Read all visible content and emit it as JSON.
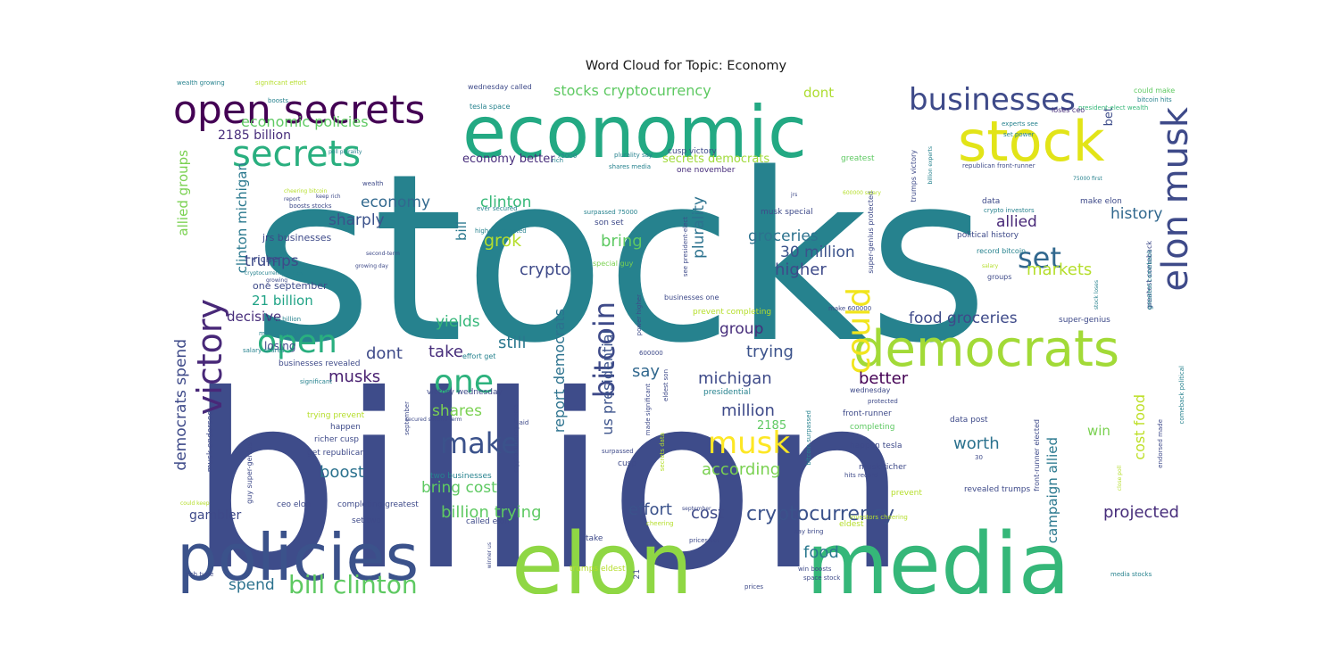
{
  "chart_data": {
    "type": "wordcloud",
    "title": "Word Cloud for Topic: Economy",
    "background": "#ffffff",
    "colormap": "viridis",
    "words": [
      {
        "text": "stocks",
        "weight": 1.0,
        "color": "#26828e"
      },
      {
        "text": "billion",
        "weight": 0.98,
        "color": "#3e4c8a"
      },
      {
        "text": "economic",
        "weight": 0.55,
        "color": "#23a983"
      },
      {
        "text": "elon",
        "weight": 0.55,
        "color": "#8fd744"
      },
      {
        "text": "media",
        "weight": 0.5,
        "color": "#35b779"
      },
      {
        "text": "policies",
        "weight": 0.42,
        "color": "#3b528b"
      },
      {
        "text": "democrats",
        "weight": 0.38,
        "color": "#a2da37"
      },
      {
        "text": "stock",
        "weight": 0.35,
        "color": "#e2e418"
      },
      {
        "text": "open secrets",
        "weight": 0.3,
        "color": "#440154"
      },
      {
        "text": "businesses",
        "weight": 0.24,
        "color": "#3e4a89"
      },
      {
        "text": "elon musk",
        "weight": 0.28,
        "color": "#3e4a89"
      },
      {
        "text": "secrets",
        "weight": 0.24,
        "color": "#29af7f"
      },
      {
        "text": "victory",
        "weight": 0.24,
        "color": "#482878"
      },
      {
        "text": "could",
        "weight": 0.22,
        "color": "#f1e51d"
      },
      {
        "text": "open",
        "weight": 0.22,
        "color": "#29af7f"
      },
      {
        "text": "one",
        "weight": 0.22,
        "color": "#2db27d"
      },
      {
        "text": "bitcoin",
        "weight": 0.2,
        "color": "#3e4a89"
      },
      {
        "text": "make",
        "weight": 0.2,
        "color": "#3b528b"
      },
      {
        "text": "musk",
        "weight": 0.2,
        "color": "#fde725"
      },
      {
        "text": "set",
        "weight": 0.18,
        "color": "#31688e"
      },
      {
        "text": "bill clinton",
        "weight": 0.15,
        "color": "#5ec962"
      },
      {
        "text": "cryptocurrency",
        "weight": 0.13,
        "color": "#3b528b"
      },
      {
        "text": "stocks cryptocurrency",
        "weight": 0.1,
        "color": "#5ec962"
      },
      {
        "text": "economic policies",
        "weight": 0.1,
        "color": "#5ec962"
      },
      {
        "text": "2185 billion",
        "weight": 0.08,
        "color": "#472d7b"
      },
      {
        "text": "economy better",
        "weight": 0.07,
        "color": "#472d7b"
      },
      {
        "text": "secrets democrats",
        "weight": 0.07,
        "color": "#a0da39"
      },
      {
        "text": "dont",
        "weight": 0.09,
        "color": "#addc30"
      },
      {
        "text": "bet",
        "weight": 0.07,
        "color": "#3e4c8a"
      },
      {
        "text": "allied groups",
        "weight": 0.09,
        "color": "#7ad151"
      },
      {
        "text": "clinton michigan",
        "weight": 0.09,
        "color": "#2a788e"
      },
      {
        "text": "economy",
        "weight": 0.1,
        "color": "#31688e"
      },
      {
        "text": "clinton",
        "weight": 0.1,
        "color": "#37b878"
      },
      {
        "text": "groceries",
        "weight": 0.12,
        "color": "#2c728e"
      },
      {
        "text": "30 million",
        "weight": 0.1,
        "color": "#3b528b"
      },
      {
        "text": "sharply",
        "weight": 0.1,
        "color": "#3b528b"
      },
      {
        "text": "grok",
        "weight": 0.11,
        "color": "#b5de2b"
      },
      {
        "text": "bill",
        "weight": 0.09,
        "color": "#2a788e"
      },
      {
        "text": "bring",
        "weight": 0.11,
        "color": "#5ec962"
      },
      {
        "text": "plurality",
        "weight": 0.11,
        "color": "#2c728e"
      },
      {
        "text": "history",
        "weight": 0.1,
        "color": "#31688e"
      },
      {
        "text": "allied",
        "weight": 0.1,
        "color": "#482878"
      },
      {
        "text": "trumps",
        "weight": 0.1,
        "color": "#3e4a89"
      },
      {
        "text": "crypto",
        "weight": 0.11,
        "color": "#3e4a89"
      },
      {
        "text": "higher",
        "weight": 0.11,
        "color": "#3e4a89"
      },
      {
        "text": "markets",
        "weight": 0.11,
        "color": "#b5de2b"
      },
      {
        "text": "21 billion",
        "weight": 0.1,
        "color": "#20a386"
      },
      {
        "text": "decisive",
        "weight": 0.09,
        "color": "#472d7b"
      },
      {
        "text": "yields",
        "weight": 0.1,
        "color": "#35b779"
      },
      {
        "text": "food groceries",
        "weight": 0.1,
        "color": "#3e4a89"
      },
      {
        "text": "group",
        "weight": 0.1,
        "color": "#472d7b"
      },
      {
        "text": "trying",
        "weight": 0.11,
        "color": "#3b528b"
      },
      {
        "text": "dont",
        "weight": 0.1,
        "color": "#3e4a89"
      },
      {
        "text": "take",
        "weight": 0.11,
        "color": "#472d7b"
      },
      {
        "text": "still",
        "weight": 0.11,
        "color": "#2a788e"
      },
      {
        "text": "michigan",
        "weight": 0.11,
        "color": "#3e4a89"
      },
      {
        "text": "better",
        "weight": 0.11,
        "color": "#440154"
      },
      {
        "text": "say",
        "weight": 0.11,
        "color": "#31688e"
      },
      {
        "text": "democrats spend",
        "weight": 0.1,
        "color": "#3e4a89"
      },
      {
        "text": "report democrats",
        "weight": 0.09,
        "color": "#2c728e"
      },
      {
        "text": "us presidential",
        "weight": 0.09,
        "color": "#3b528b"
      },
      {
        "text": "million",
        "weight": 0.11,
        "color": "#3e4a89"
      },
      {
        "text": "2185",
        "weight": 0.09,
        "color": "#5ec962"
      },
      {
        "text": "cost food",
        "weight": 0.09,
        "color": "#bddf26"
      },
      {
        "text": "musks",
        "weight": 0.1,
        "color": "#481f70"
      },
      {
        "text": "shares",
        "weight": 0.1,
        "color": "#7ad151"
      },
      {
        "text": "bring cost",
        "weight": 0.11,
        "color": "#5ec962"
      },
      {
        "text": "worth",
        "weight": 0.11,
        "color": "#2c728e"
      },
      {
        "text": "win",
        "weight": 0.09,
        "color": "#7ad151"
      },
      {
        "text": "campaign allied",
        "weight": 0.09,
        "color": "#2a788e"
      },
      {
        "text": "boost",
        "weight": 0.11,
        "color": "#2c728e"
      },
      {
        "text": "according",
        "weight": 0.11,
        "color": "#7ad151"
      },
      {
        "text": "billion trying",
        "weight": 0.11,
        "color": "#5ec962"
      },
      {
        "text": "effort",
        "weight": 0.11,
        "color": "#3b528b"
      },
      {
        "text": "cost",
        "weight": 0.11,
        "color": "#3e4a89"
      },
      {
        "text": "projected",
        "weight": 0.11,
        "color": "#472d7b"
      },
      {
        "text": "gambler",
        "weight": 0.09,
        "color": "#3e4a89"
      },
      {
        "text": "food",
        "weight": 0.11,
        "color": "#2a788e"
      },
      {
        "text": "spend",
        "weight": 0.11,
        "color": "#2c728e"
      },
      {
        "text": "losing",
        "weight": 0.06,
        "color": "#3e4a89"
      },
      {
        "text": "jrs businesses",
        "weight": 0.06,
        "color": "#3e4a89"
      },
      {
        "text": "one september",
        "weight": 0.06,
        "color": "#3e4a89"
      },
      {
        "text": "richer",
        "weight": 0.06,
        "color": "#3e4a89"
      },
      {
        "text": "wealth growing",
        "weight": 0.04,
        "color": "#26828e"
      },
      {
        "text": "significant effort",
        "weight": 0.04,
        "color": "#b5de2b"
      },
      {
        "text": "boosts",
        "weight": 0.04,
        "color": "#26828e"
      },
      {
        "text": "wednesday called",
        "weight": 0.05,
        "color": "#3e4a89"
      },
      {
        "text": "tesla space",
        "weight": 0.05,
        "color": "#26828e"
      },
      {
        "text": "could make",
        "weight": 0.05,
        "color": "#5ec962"
      },
      {
        "text": "bitcoin hits",
        "weight": 0.04,
        "color": "#26828e"
      },
      {
        "text": "president-elect wealth",
        "weight": 0.04,
        "color": "#35b779"
      },
      {
        "text": "loses ceo",
        "weight": 0.05,
        "color": "#472d7b"
      },
      {
        "text": "experts see",
        "weight": 0.04,
        "color": "#26828e"
      },
      {
        "text": "set power",
        "weight": 0.04,
        "color": "#26828e"
      },
      {
        "text": "one november",
        "weight": 0.05,
        "color": "#472d7b"
      },
      {
        "text": "cusp victory",
        "weight": 0.06,
        "color": "#3e4a89"
      },
      {
        "text": "greatest",
        "weight": 0.06,
        "color": "#5ec962"
      },
      {
        "text": "plurality say",
        "weight": 0.04,
        "color": "#26828e"
      },
      {
        "text": "shares media",
        "weight": 0.04,
        "color": "#26828e"
      },
      {
        "text": "75000",
        "weight": 0.04,
        "color": "#26828e"
      },
      {
        "text": "rich",
        "weight": 0.04,
        "color": "#26828e"
      },
      {
        "text": "trumps victory",
        "weight": 0.05,
        "color": "#3e4a89"
      },
      {
        "text": "republican front-runner",
        "weight": 0.04,
        "color": "#3e4a89"
      },
      {
        "text": "greatest comeback",
        "weight": 0.05,
        "color": "#3e4a89"
      },
      {
        "text": "super-genius protected",
        "weight": 0.05,
        "color": "#3e4a89"
      },
      {
        "text": "make elon",
        "weight": 0.06,
        "color": "#3e4a89"
      },
      {
        "text": "data",
        "weight": 0.06,
        "color": "#3e4a89"
      },
      {
        "text": "crypto investors",
        "weight": 0.04,
        "color": "#26828e"
      },
      {
        "text": "political history",
        "weight": 0.05,
        "color": "#3e4a89"
      },
      {
        "text": "record bitcoin",
        "weight": 0.05,
        "color": "#26828e"
      },
      {
        "text": "groups",
        "weight": 0.05,
        "color": "#3e4a89"
      },
      {
        "text": "musk special",
        "weight": 0.05,
        "color": "#3e4a89"
      },
      {
        "text": "surpassed 75000",
        "weight": 0.04,
        "color": "#26828e"
      },
      {
        "text": "son set",
        "weight": 0.05,
        "color": "#3e4a89"
      },
      {
        "text": "special guy",
        "weight": 0.04,
        "color": "#7ad151"
      },
      {
        "text": "higher projected",
        "weight": 0.04,
        "color": "#26828e"
      },
      {
        "text": "ever secured",
        "weight": 0.04,
        "color": "#26828e"
      },
      {
        "text": "super-genius",
        "weight": 0.05,
        "color": "#3e4a89"
      },
      {
        "text": "prevent completing",
        "weight": 0.05,
        "color": "#b5de2b"
      },
      {
        "text": "businesses one",
        "weight": 0.05,
        "color": "#3e4a89"
      },
      {
        "text": "media could",
        "weight": 0.04,
        "color": "#26828e"
      },
      {
        "text": "effort get",
        "weight": 0.05,
        "color": "#26828e"
      },
      {
        "text": "tune billion",
        "weight": 0.04,
        "color": "#26828e"
      },
      {
        "text": "salary shares",
        "weight": 0.04,
        "color": "#26828e"
      },
      {
        "text": "businesses revealed",
        "weight": 0.05,
        "color": "#3e4a89"
      },
      {
        "text": "significant",
        "weight": 0.04,
        "color": "#26828e"
      },
      {
        "text": "victory wednesday",
        "weight": 0.05,
        "color": "#3e4a89"
      },
      {
        "text": "presidential",
        "weight": 0.05,
        "color": "#26828e"
      },
      {
        "text": "wednesday",
        "weight": 0.05,
        "color": "#3e4a89"
      },
      {
        "text": "front-runner",
        "weight": 0.05,
        "color": "#3e4a89"
      },
      {
        "text": "completing",
        "weight": 0.05,
        "color": "#5ec962"
      },
      {
        "text": "happen tesla",
        "weight": 0.05,
        "color": "#3e4a89"
      },
      {
        "text": "musk richer",
        "weight": 0.05,
        "color": "#3e4a89"
      },
      {
        "text": "hits record",
        "weight": 0.04,
        "color": "#3e4a89"
      },
      {
        "text": "data post",
        "weight": 0.05,
        "color": "#3e4a89"
      },
      {
        "text": "trying prevent",
        "weight": 0.05,
        "color": "#b5de2b"
      },
      {
        "text": "happen",
        "weight": 0.05,
        "color": "#3e4a89"
      },
      {
        "text": "richer cusp",
        "weight": 0.05,
        "color": "#3e4a89"
      },
      {
        "text": "get republican",
        "weight": 0.05,
        "color": "#3e4a89"
      },
      {
        "text": "two businesses",
        "weight": 0.05,
        "color": "#26828e"
      },
      {
        "text": "ceo elon",
        "weight": 0.05,
        "color": "#3e4a89"
      },
      {
        "text": "completing greatest",
        "weight": 0.05,
        "color": "#3e4a89"
      },
      {
        "text": "set two",
        "weight": 0.05,
        "color": "#3e4a89"
      },
      {
        "text": "called elon",
        "weight": 0.05,
        "color": "#3e4a89"
      },
      {
        "text": "revealed trumps",
        "weight": 0.05,
        "color": "#3e4a89"
      },
      {
        "text": "trumps eldest",
        "weight": 0.05,
        "color": "#b5de2b"
      },
      {
        "text": "take",
        "weight": 0.05,
        "color": "#3e4a89"
      },
      {
        "text": "prices set",
        "weight": 0.04,
        "color": "#3e4a89"
      },
      {
        "text": "say bring",
        "weight": 0.04,
        "color": "#3e4a89"
      },
      {
        "text": "win boosts",
        "weight": 0.04,
        "color": "#3e4a89"
      },
      {
        "text": "space stock",
        "weight": 0.04,
        "color": "#3e4a89"
      },
      {
        "text": "prices",
        "weight": 0.04,
        "color": "#3e4a89"
      },
      {
        "text": "media stocks",
        "weight": 0.04,
        "color": "#26828e"
      },
      {
        "text": "rich tune",
        "weight": 0.04,
        "color": "#3e4a89"
      },
      {
        "text": "cusp",
        "weight": 0.05,
        "color": "#3e4a89"
      },
      {
        "text": "surpassed",
        "weight": 0.04,
        "color": "#3e4a89"
      },
      {
        "text": "musk endorsed",
        "weight": 0.05,
        "color": "#3e4a89"
      },
      {
        "text": "guy super-genius",
        "weight": 0.05,
        "color": "#3e4a89"
      },
      {
        "text": "report",
        "weight": 0.04,
        "color": "#3e4a89"
      },
      {
        "text": "boosts stocks",
        "weight": 0.04,
        "color": "#3e4a89"
      },
      {
        "text": "wealth",
        "weight": 0.04,
        "color": "#3e4a89"
      },
      {
        "text": "second-term",
        "weight": 0.04,
        "color": "#3e4a89"
      },
      {
        "text": "growing day",
        "weight": 0.04,
        "color": "#3e4a89"
      },
      {
        "text": "cryptocurrency prices",
        "weight": 0.04,
        "color": "#26828e"
      },
      {
        "text": "jrs",
        "weight": 0.04,
        "color": "#3e4a89"
      },
      {
        "text": "75000 first",
        "weight": 0.04,
        "color": "#26828e"
      },
      {
        "text": "billion experts",
        "weight": 0.04,
        "color": "#26828e"
      },
      {
        "text": "salary",
        "weight": 0.04,
        "color": "#b5de2b"
      },
      {
        "text": "stock loses",
        "weight": 0.04,
        "color": "#26828e"
      },
      {
        "text": "comeback political",
        "weight": 0.04,
        "color": "#26828e"
      },
      {
        "text": "endorsed made",
        "weight": 0.04,
        "color": "#3e4a89"
      },
      {
        "text": "greatest comeback",
        "weight": 0.04,
        "color": "#26828e"
      },
      {
        "text": "front-runner elected",
        "weight": 0.05,
        "color": "#3e4a89"
      },
      {
        "text": "bitcoin surpassed",
        "weight": 0.04,
        "color": "#26828e"
      },
      {
        "text": "eldest son",
        "weight": 0.04,
        "color": "#3e4a89"
      },
      {
        "text": "made significant",
        "weight": 0.04,
        "color": "#3e4a89"
      },
      {
        "text": "secrets data",
        "weight": 0.04,
        "color": "#b5de2b"
      },
      {
        "text": "power higher",
        "weight": 0.04,
        "color": "#3e4a89"
      },
      {
        "text": "see president-elect",
        "weight": 0.04,
        "color": "#3e4a89"
      },
      {
        "text": "cryptocurrency media",
        "weight": 0.04,
        "color": "#3e4a89"
      },
      {
        "text": "september",
        "weight": 0.04,
        "color": "#3e4a89"
      },
      {
        "text": "secured second-term",
        "weight": 0.04,
        "color": "#3e4a89"
      },
      {
        "text": "said",
        "weight": 0.04,
        "color": "#3e4a89"
      },
      {
        "text": "eldest",
        "weight": 0.05,
        "color": "#b5de2b"
      },
      {
        "text": "prevent",
        "weight": 0.05,
        "color": "#b5de2b"
      },
      {
        "text": "30",
        "weight": 0.04,
        "color": "#3e4a89"
      },
      {
        "text": "21",
        "weight": 0.05,
        "color": "#3e4a89"
      },
      {
        "text": "600000",
        "weight": 0.04,
        "color": "#3e4a89"
      },
      {
        "text": "make 600000",
        "weight": 0.04,
        "color": "#3e4a89"
      },
      {
        "text": "protected",
        "weight": 0.04,
        "color": "#3e4a89"
      },
      {
        "text": "cheering",
        "weight": 0.04,
        "color": "#b5de2b"
      },
      {
        "text": "investors cheering",
        "weight": 0.04,
        "color": "#b5de2b"
      },
      {
        "text": "could keep",
        "weight": 0.03,
        "color": "#b5de2b"
      },
      {
        "text": "keep rich",
        "weight": 0.04,
        "color": "#3e4a89"
      },
      {
        "text": "poll plurality",
        "weight": 0.04,
        "color": "#26828e"
      },
      {
        "text": "cheering bitcoin",
        "weight": 0.03,
        "color": "#b5de2b"
      },
      {
        "text": "600000 salary",
        "weight": 0.03,
        "color": "#b5de2b"
      },
      {
        "text": "close poll",
        "weight": 0.03,
        "color": "#b5de2b"
      },
      {
        "text": "growing",
        "weight": 0.04,
        "color": "#3e4a89"
      },
      {
        "text": "winner us",
        "weight": 0.03,
        "color": "#3e4a89"
      },
      {
        "text": "september",
        "weight": 0.04,
        "color": "#3e4a89"
      }
    ]
  }
}
